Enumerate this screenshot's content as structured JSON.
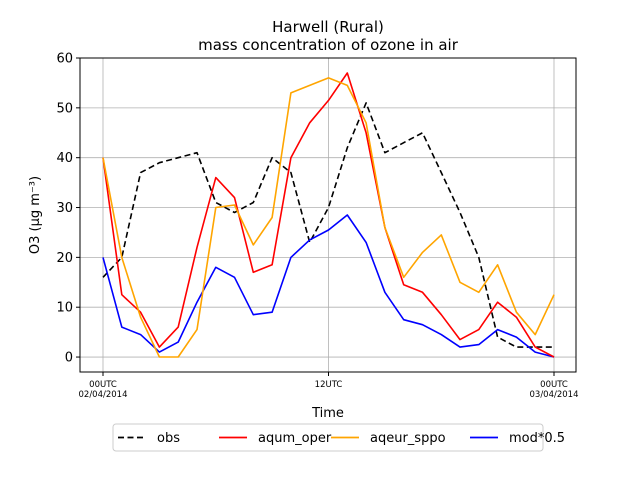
{
  "chart_data": {
    "type": "line",
    "title": "Harwell (Rural)",
    "subtitle": "mass concentration of ozone in air",
    "xlabel": "Time",
    "ylabel": "O3 (μg m⁻³)",
    "ylim": [
      -3,
      60
    ],
    "xlim": [
      0,
      24
    ],
    "grid": true,
    "legend_position": "bottom-center",
    "y_ticks": [
      0,
      10,
      20,
      30,
      40,
      50,
      60
    ],
    "x_ticks": [
      {
        "x": 0,
        "line1": "00UTC",
        "line2": "02/04/2014"
      },
      {
        "x": 12,
        "line1": "12UTC",
        "line2": ""
      },
      {
        "x": 24,
        "line1": "00UTC",
        "line2": "03/04/2014"
      }
    ],
    "x": [
      0,
      1,
      2,
      3,
      4,
      5,
      6,
      7,
      8,
      9,
      10,
      11,
      12,
      13,
      14,
      15,
      16,
      17,
      18,
      19,
      20,
      21,
      22,
      23,
      24
    ],
    "series": [
      {
        "name": "obs",
        "color": "#000000",
        "dashed": true,
        "values": [
          16,
          20,
          37,
          39,
          40,
          41,
          31,
          29,
          31,
          40,
          37,
          23,
          30,
          42,
          51,
          41,
          43,
          45,
          37,
          29,
          20,
          4,
          2,
          2,
          2
        ]
      },
      {
        "name": "aqum_oper",
        "color": "#ff0000",
        "dashed": false,
        "values": [
          40,
          12.5,
          9,
          2,
          6,
          22,
          36,
          32,
          17,
          18.5,
          40,
          47,
          51.5,
          57,
          45,
          26,
          14.5,
          13,
          8.5,
          3.5,
          5.5,
          11,
          8,
          2,
          0
        ]
      },
      {
        "name": "aqeur_sppo",
        "color": "#ffa500",
        "dashed": false,
        "values": [
          40,
          20,
          8,
          0,
          0,
          5.5,
          30,
          30.5,
          22.5,
          28,
          53,
          54.5,
          56,
          54.5,
          47,
          26,
          16,
          21,
          24.5,
          15,
          13,
          18.5,
          9,
          4.5,
          12.5
        ]
      },
      {
        "name": "mod*0.5",
        "color": "#0000ff",
        "dashed": false,
        "values": [
          20,
          6,
          4.5,
          1,
          3,
          11,
          18,
          16,
          8.5,
          9,
          20,
          23.5,
          25.5,
          28.5,
          23,
          13,
          7.5,
          6.5,
          4.5,
          2,
          2.5,
          5.5,
          4,
          1,
          0
        ]
      }
    ]
  }
}
